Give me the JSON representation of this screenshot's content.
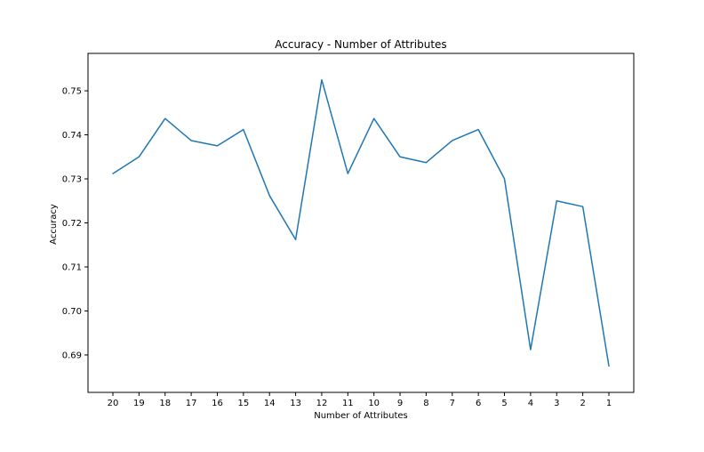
{
  "chart_data": {
    "type": "line",
    "title": "Accuracy - Number of Attributes",
    "xlabel": "Number of Attributes",
    "ylabel": "Accuracy",
    "categories": [
      "20",
      "19",
      "18",
      "17",
      "16",
      "15",
      "14",
      "13",
      "12",
      "11",
      "10",
      "9",
      "8",
      "7",
      "6",
      "5",
      "4",
      "3",
      "2",
      "1"
    ],
    "series": [
      {
        "values": [
          0.7312,
          0.735,
          0.7437,
          0.7387,
          0.7375,
          0.7412,
          0.7262,
          0.7162,
          0.7525,
          0.7312,
          0.7437,
          0.735,
          0.7337,
          0.7387,
          0.7412,
          0.73,
          0.6912,
          0.725,
          0.7237,
          0.6875
        ]
      }
    ],
    "y_ticks": [
      "0.69",
      "0.70",
      "0.71",
      "0.72",
      "0.73",
      "0.74",
      "0.75"
    ],
    "ylim": [
      0.6815,
      0.7585
    ],
    "grid": false,
    "colors": {
      "line": "#1f77b4",
      "axes": "#000000",
      "background": "#ffffff"
    }
  }
}
